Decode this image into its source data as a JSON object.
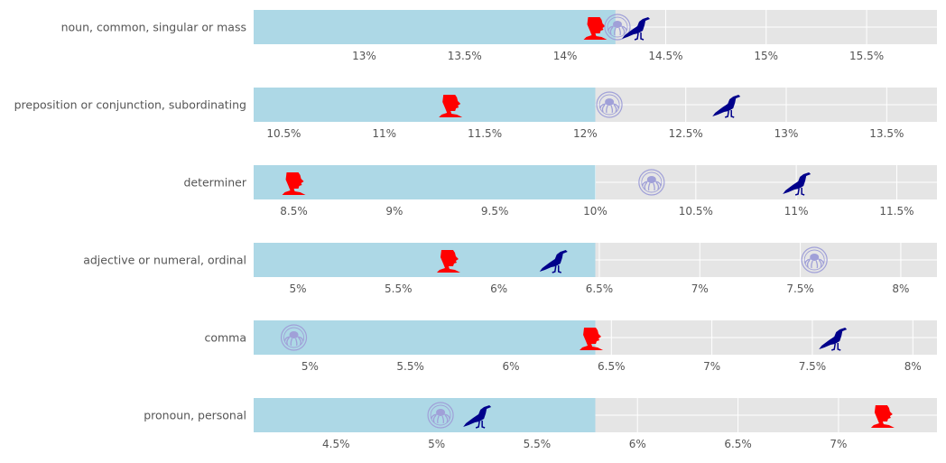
{
  "colors": {
    "panel_bg": "#e5e5e5",
    "grid": "#ffffff",
    "bar": "#add8e6",
    "author_red": "#ff0000",
    "author_navy": "#00008b",
    "author_seal": "#a0a0d8",
    "text": "#555555"
  },
  "marker_icons": {
    "red": "red-profile-bust-icon",
    "navy": "raven-icon",
    "seal": "octopus-seal-icon"
  },
  "chart_data": {
    "type": "bar",
    "orientation": "horizontal",
    "grid": true,
    "unit": "%",
    "panels": [
      {
        "category": "noun, common, singular or mass",
        "bar_value": 14.25,
        "markers": {
          "red": 14.15,
          "seal": 14.26,
          "navy": 14.35
        },
        "xlim": [
          12.45,
          15.85
        ],
        "ticks": [
          13,
          13.5,
          14,
          14.5,
          15,
          15.5
        ],
        "tick_labels": [
          "13%",
          "13.5%",
          "14%",
          "14.5%",
          "15%",
          "15.5%"
        ]
      },
      {
        "category": "preposition or conjunction, subordinating",
        "bar_value": 12.05,
        "markers": {
          "red": 11.33,
          "seal": 12.12,
          "navy": 12.7
        },
        "xlim": [
          10.35,
          13.75
        ],
        "ticks": [
          10.5,
          11,
          11.5,
          12,
          12.5,
          13,
          13.5
        ],
        "tick_labels": [
          "10.5%",
          "11%",
          "11.5%",
          "12%",
          "12.5%",
          "13%",
          "13.5%"
        ]
      },
      {
        "category": "determiner",
        "bar_value": 10.0,
        "markers": {
          "red": 8.5,
          "seal": 10.28,
          "navy": 11.0
        },
        "xlim": [
          8.3,
          11.7
        ],
        "ticks": [
          8.5,
          9,
          9.5,
          10,
          10.5,
          11,
          11.5
        ],
        "tick_labels": [
          "8.5%",
          "9%",
          "9.5%",
          "10%",
          "10.5%",
          "11%",
          "11.5%"
        ]
      },
      {
        "category": "adjective or numeral, ordinal",
        "bar_value": 6.48,
        "markers": {
          "red": 5.75,
          "navy": 6.27,
          "seal": 7.57
        },
        "xlim": [
          4.78,
          8.18
        ],
        "ticks": [
          5,
          5.5,
          6,
          6.5,
          7,
          7.5,
          8
        ],
        "tick_labels": [
          "5%",
          "5.5%",
          "6%",
          "6.5%",
          "7%",
          "7.5%",
          "8%"
        ]
      },
      {
        "category": "comma",
        "bar_value": 6.42,
        "markers": {
          "seal": 4.92,
          "red": 6.4,
          "navy": 7.6
        },
        "xlim": [
          4.72,
          8.12
        ],
        "ticks": [
          5,
          5.5,
          6,
          6.5,
          7,
          7.5,
          8
        ],
        "tick_labels": [
          "5%",
          "5.5%",
          "6%",
          "6.5%",
          "7%",
          "7.5%",
          "8%"
        ]
      },
      {
        "category": "pronoun, personal",
        "bar_value": 5.79,
        "markers": {
          "seal": 5.02,
          "navy": 5.2,
          "red": 7.22
        },
        "xlim": [
          4.09,
          7.49
        ],
        "ticks": [
          4.5,
          5,
          5.5,
          6,
          6.5,
          7
        ],
        "tick_labels": [
          "4.5%",
          "5%",
          "5.5%",
          "6%",
          "6.5%",
          "7%"
        ]
      }
    ]
  }
}
